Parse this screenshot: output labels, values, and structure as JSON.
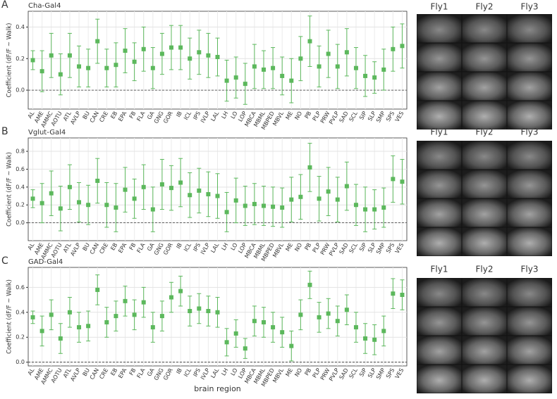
{
  "chart_data": [
    {
      "type": "errorbar",
      "panel": "A",
      "title": "Cha-Gal4",
      "y_label": "Coefficient (dF/F ~ Walk)",
      "color": "#5cb85c",
      "grid": true,
      "categories": [
        "AL",
        "AME",
        "AMMC",
        "AOTU",
        "ATL",
        "AVLP",
        "BU",
        "CAN",
        "CRE",
        "EB",
        "EPA",
        "FB",
        "FLA",
        "GA",
        "GNG",
        "GOR",
        "IB",
        "ICL",
        "IPS",
        "IVLP",
        "LAL",
        "LH",
        "LO",
        "LOP",
        "MBCA",
        "MBML",
        "MBPED",
        "MBVL",
        "ME",
        "NO",
        "PB",
        "PLP",
        "PRW",
        "PVLP",
        "SAD",
        "SCL",
        "SIP",
        "SLP",
        "SMP",
        "SPS",
        "VES"
      ],
      "values": [
        0.19,
        0.12,
        0.22,
        0.1,
        0.22,
        0.15,
        0.14,
        0.31,
        0.14,
        0.16,
        0.25,
        0.18,
        0.26,
        0.14,
        0.23,
        0.27,
        0.27,
        0.2,
        0.24,
        0.22,
        0.21,
        0.06,
        0.08,
        0.04,
        0.15,
        0.13,
        0.14,
        0.09,
        0.06,
        0.2,
        0.31,
        0.15,
        0.23,
        0.15,
        0.24,
        0.14,
        0.09,
        0.08,
        0.13,
        0.26,
        0.28
      ],
      "errors": [
        0.06,
        0.13,
        0.14,
        0.13,
        0.14,
        0.13,
        0.12,
        0.14,
        0.12,
        0.14,
        0.14,
        0.12,
        0.14,
        0.13,
        0.13,
        0.14,
        0.14,
        0.13,
        0.14,
        0.14,
        0.12,
        0.13,
        0.13,
        0.13,
        0.14,
        0.12,
        0.13,
        0.12,
        0.14,
        0.14,
        0.16,
        0.13,
        0.15,
        0.14,
        0.15,
        0.13,
        0.13,
        0.1,
        0.13,
        0.14,
        0.14
      ],
      "ylim": [
        -0.12,
        0.5
      ],
      "yticks": [
        {
          "value": 0,
          "label": "0.0"
        },
        {
          "value": 0.2,
          "label": "0.2"
        },
        {
          "value": 0.4,
          "label": "0.4"
        }
      ]
    },
    {
      "type": "errorbar",
      "panel": "B",
      "title": "Vglut-Gal4",
      "y_label": "Coefficient (dF/F ~ Walk)",
      "color": "#5cb85c",
      "grid": true,
      "categories": [
        "AL",
        "AME",
        "AMMC",
        "AOTU",
        "ATL",
        "AVLP",
        "BU",
        "CAN",
        "CRE",
        "EB",
        "EPA",
        "FB",
        "FLA",
        "GA",
        "GNG",
        "GOR",
        "IB",
        "ICL",
        "IPS",
        "IVLP",
        "LAL",
        "LH",
        "LO",
        "LOP",
        "MBCA",
        "MBML",
        "MBPED",
        "MBVL",
        "ME",
        "NO",
        "PB",
        "PLP",
        "PRW",
        "PVLP",
        "SAD",
        "SCL",
        "SIP",
        "SLP",
        "SMP",
        "SPS",
        "VES"
      ],
      "values": [
        0.27,
        0.22,
        0.33,
        0.16,
        0.4,
        0.23,
        0.2,
        0.47,
        0.2,
        0.17,
        0.37,
        0.27,
        0.4,
        0.15,
        0.43,
        0.39,
        0.45,
        0.31,
        0.36,
        0.32,
        0.3,
        0.12,
        0.25,
        0.19,
        0.21,
        0.19,
        0.18,
        0.17,
        0.26,
        0.29,
        0.62,
        0.27,
        0.35,
        0.26,
        0.41,
        0.2,
        0.15,
        0.15,
        0.17,
        0.49,
        0.46
      ],
      "errors": [
        0.1,
        0.22,
        0.25,
        0.25,
        0.25,
        0.22,
        0.22,
        0.25,
        0.25,
        0.27,
        0.25,
        0.22,
        0.25,
        0.25,
        0.28,
        0.25,
        0.27,
        0.25,
        0.25,
        0.25,
        0.25,
        0.22,
        0.25,
        0.22,
        0.23,
        0.22,
        0.22,
        0.22,
        0.25,
        0.25,
        0.27,
        0.25,
        0.27,
        0.25,
        0.27,
        0.23,
        0.25,
        0.22,
        0.22,
        0.26,
        0.25
      ],
      "ylim": [
        -0.2,
        0.95
      ],
      "yticks": [
        {
          "value": 0,
          "label": "0.0"
        },
        {
          "value": 0.2,
          "label": "0.2"
        },
        {
          "value": 0.4,
          "label": "0.4"
        },
        {
          "value": 0.6,
          "label": "0.6"
        },
        {
          "value": 0.8,
          "label": "0.8"
        }
      ]
    },
    {
      "type": "errorbar",
      "panel": "C",
      "title": "GAD-Gal4",
      "y_label": "Coefficient (dF/F ~ Walk)",
      "x_label": "brain region",
      "color": "#5cb85c",
      "grid": true,
      "categories": [
        "AL",
        "AME",
        "AMMC",
        "AOTU",
        "ATL",
        "AVLP",
        "BU",
        "CAN",
        "CRE",
        "EB",
        "EPA",
        "FB",
        "FLA",
        "GA",
        "GNG",
        "GOR",
        "IB",
        "ICL",
        "IPS",
        "IVLP",
        "LAL",
        "LH",
        "LO",
        "LOP",
        "MBCA",
        "MBML",
        "MBPED",
        "MBVL",
        "ME",
        "NO",
        "PB",
        "PLP",
        "PRW",
        "PVLP",
        "SAD",
        "SCL",
        "SIP",
        "SLP",
        "SMP",
        "SPS",
        "VES"
      ],
      "values": [
        0.36,
        0.25,
        0.38,
        0.19,
        0.4,
        0.28,
        0.29,
        0.58,
        0.32,
        0.37,
        0.49,
        0.38,
        0.48,
        0.28,
        0.37,
        0.52,
        0.57,
        0.41,
        0.43,
        0.41,
        0.4,
        0.16,
        0.23,
        0.11,
        0.33,
        0.32,
        0.28,
        0.24,
        0.13,
        0.38,
        0.62,
        0.36,
        0.39,
        0.33,
        0.42,
        0.28,
        0.19,
        0.18,
        0.25,
        0.55,
        0.54
      ],
      "errors": [
        0.05,
        0.12,
        0.12,
        0.12,
        0.12,
        0.12,
        0.12,
        0.12,
        0.12,
        0.12,
        0.12,
        0.12,
        0.12,
        0.12,
        0.12,
        0.12,
        0.12,
        0.12,
        0.12,
        0.12,
        0.12,
        0.11,
        0.11,
        0.08,
        0.12,
        0.12,
        0.12,
        0.12,
        0.12,
        0.12,
        0.11,
        0.12,
        0.12,
        0.12,
        0.12,
        0.12,
        0.12,
        0.12,
        0.12,
        0.12,
        0.12
      ],
      "ylim": [
        -0.03,
        0.76
      ],
      "yticks": [
        {
          "value": 0,
          "label": "0.0"
        },
        {
          "value": 0.2,
          "label": "0.2"
        },
        {
          "value": 0.4,
          "label": "0.4"
        },
        {
          "value": 0.6,
          "label": "0.6"
        }
      ]
    }
  ],
  "image_panels": [
    {
      "columns": [
        "Fly1",
        "Fly2",
        "Fly3"
      ]
    },
    {
      "columns": [
        "Fly1",
        "Fly2",
        "Fly3"
      ]
    },
    {
      "columns": [
        "Fly1",
        "Fly2",
        "Fly3"
      ]
    }
  ]
}
